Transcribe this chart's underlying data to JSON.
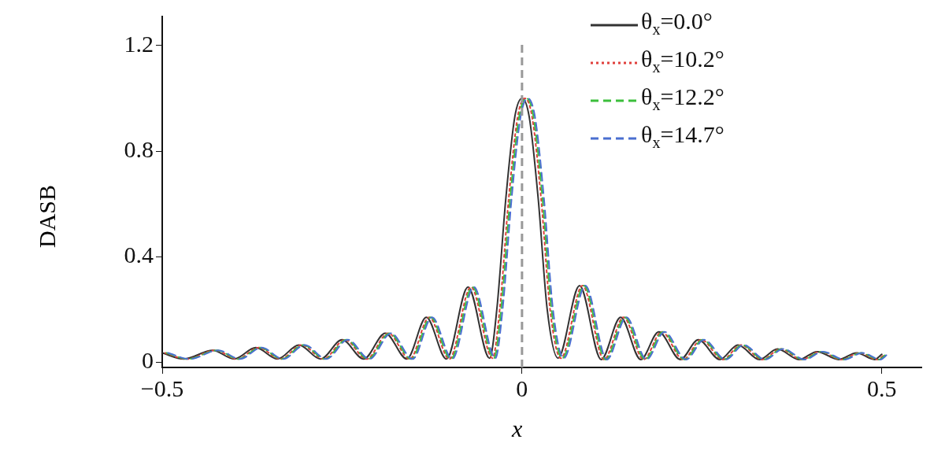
{
  "chart_data": {
    "type": "line",
    "xlabel": "x",
    "ylabel": "DASB",
    "series": [
      {
        "name": "θ$_{x}$=0.0°",
        "color": "#333333",
        "line_style": "solid",
        "x": [
          -0.5,
          -0.47,
          -0.43,
          -0.4,
          -0.37,
          -0.34,
          -0.31,
          -0.28,
          -0.25,
          -0.22,
          -0.19,
          -0.16,
          -0.133,
          -0.105,
          -0.075,
          -0.045,
          -0.035,
          -0.0225,
          -0.01,
          0,
          0.01,
          0.0225,
          0.035,
          0.05,
          0.08,
          0.11,
          0.137,
          0.165,
          0.19,
          0.22,
          0.245,
          0.275,
          0.3,
          0.33,
          0.355,
          0.385,
          0.41,
          0.44,
          0.465,
          0.49,
          0.5
        ],
        "values": [
          0.035,
          0.012,
          0.045,
          0.012,
          0.055,
          0.012,
          0.065,
          0.012,
          0.085,
          0.012,
          0.11,
          0.012,
          0.17,
          0.012,
          0.285,
          0.015,
          0.2,
          0.62,
          0.93,
          1.0,
          0.93,
          0.62,
          0.2,
          0.015,
          0.29,
          0.01,
          0.17,
          0.01,
          0.115,
          0.01,
          0.085,
          0.01,
          0.065,
          0.01,
          0.05,
          0.01,
          0.04,
          0.01,
          0.035,
          0.01,
          0.03
        ]
      },
      {
        "name": "θ$_{x}$=10.2°",
        "color": "#e0403c",
        "line_style": "dotted",
        "x": [
          -0.496,
          -0.466,
          -0.426,
          -0.396,
          -0.366,
          -0.336,
          -0.306,
          -0.276,
          -0.246,
          -0.216,
          -0.186,
          -0.156,
          -0.129,
          -0.101,
          -0.071,
          -0.041,
          -0.031,
          -0.0185,
          -0.006,
          0.004,
          0.014,
          0.0265,
          0.039,
          0.054,
          0.084,
          0.114,
          0.141,
          0.169,
          0.194,
          0.224,
          0.249,
          0.279,
          0.304,
          0.334,
          0.359,
          0.389,
          0.414,
          0.444,
          0.469,
          0.494,
          0.504
        ],
        "values": [
          0.035,
          0.012,
          0.045,
          0.012,
          0.055,
          0.012,
          0.065,
          0.012,
          0.085,
          0.012,
          0.11,
          0.012,
          0.17,
          0.012,
          0.285,
          0.015,
          0.2,
          0.62,
          0.93,
          1.0,
          0.93,
          0.62,
          0.2,
          0.015,
          0.29,
          0.01,
          0.17,
          0.01,
          0.115,
          0.01,
          0.085,
          0.01,
          0.065,
          0.01,
          0.05,
          0.01,
          0.04,
          0.01,
          0.035,
          0.01,
          0.03
        ]
      },
      {
        "name": "θ$_{x}$=12.2°",
        "color": "#3cbf3c",
        "line_style": "dashed",
        "x": [
          -0.494,
          -0.464,
          -0.424,
          -0.394,
          -0.364,
          -0.334,
          -0.304,
          -0.274,
          -0.244,
          -0.214,
          -0.184,
          -0.154,
          -0.127,
          -0.099,
          -0.069,
          -0.039,
          -0.029,
          -0.0165,
          -0.004,
          0.006,
          0.016,
          0.0285,
          0.041,
          0.056,
          0.086,
          0.116,
          0.143,
          0.171,
          0.196,
          0.226,
          0.251,
          0.281,
          0.306,
          0.336,
          0.361,
          0.391,
          0.416,
          0.446,
          0.471,
          0.496,
          0.506
        ],
        "values": [
          0.035,
          0.012,
          0.045,
          0.012,
          0.055,
          0.012,
          0.065,
          0.012,
          0.085,
          0.012,
          0.11,
          0.012,
          0.17,
          0.012,
          0.285,
          0.015,
          0.2,
          0.62,
          0.93,
          1.0,
          0.93,
          0.62,
          0.2,
          0.015,
          0.29,
          0.01,
          0.17,
          0.01,
          0.115,
          0.01,
          0.085,
          0.01,
          0.065,
          0.01,
          0.05,
          0.01,
          0.04,
          0.01,
          0.035,
          0.01,
          0.03
        ]
      },
      {
        "name": "θ$_{x}$=14.7°",
        "color": "#4a6fd0",
        "line_style": "dashed",
        "x": [
          -0.492,
          -0.462,
          -0.422,
          -0.392,
          -0.362,
          -0.332,
          -0.302,
          -0.272,
          -0.242,
          -0.212,
          -0.182,
          -0.152,
          -0.125,
          -0.097,
          -0.067,
          -0.037,
          -0.027,
          -0.0145,
          -0.002,
          0.008,
          0.018,
          0.0305,
          0.043,
          0.058,
          0.088,
          0.118,
          0.145,
          0.173,
          0.198,
          0.228,
          0.253,
          0.283,
          0.308,
          0.338,
          0.363,
          0.393,
          0.418,
          0.448,
          0.473,
          0.498,
          0.508
        ],
        "values": [
          0.035,
          0.012,
          0.045,
          0.012,
          0.055,
          0.012,
          0.065,
          0.012,
          0.085,
          0.012,
          0.11,
          0.012,
          0.17,
          0.012,
          0.285,
          0.015,
          0.2,
          0.62,
          0.93,
          1.0,
          0.93,
          0.62,
          0.2,
          0.015,
          0.29,
          0.01,
          0.17,
          0.01,
          0.115,
          0.01,
          0.085,
          0.01,
          0.065,
          0.01,
          0.05,
          0.01,
          0.04,
          0.01,
          0.035,
          0.01,
          0.03
        ]
      }
    ],
    "xlim": [
      -0.5,
      0.555
    ],
    "xticks": [
      -0.5,
      0,
      0.5
    ],
    "ylim": [
      -0.02,
      1.31
    ],
    "yticks": [
      0,
      0.4,
      0.8,
      1.2
    ],
    "ref_lines": [
      {
        "axis": "x",
        "value": 0,
        "color": "#999999",
        "line_style": "dashed"
      }
    ],
    "legend": "top right"
  }
}
